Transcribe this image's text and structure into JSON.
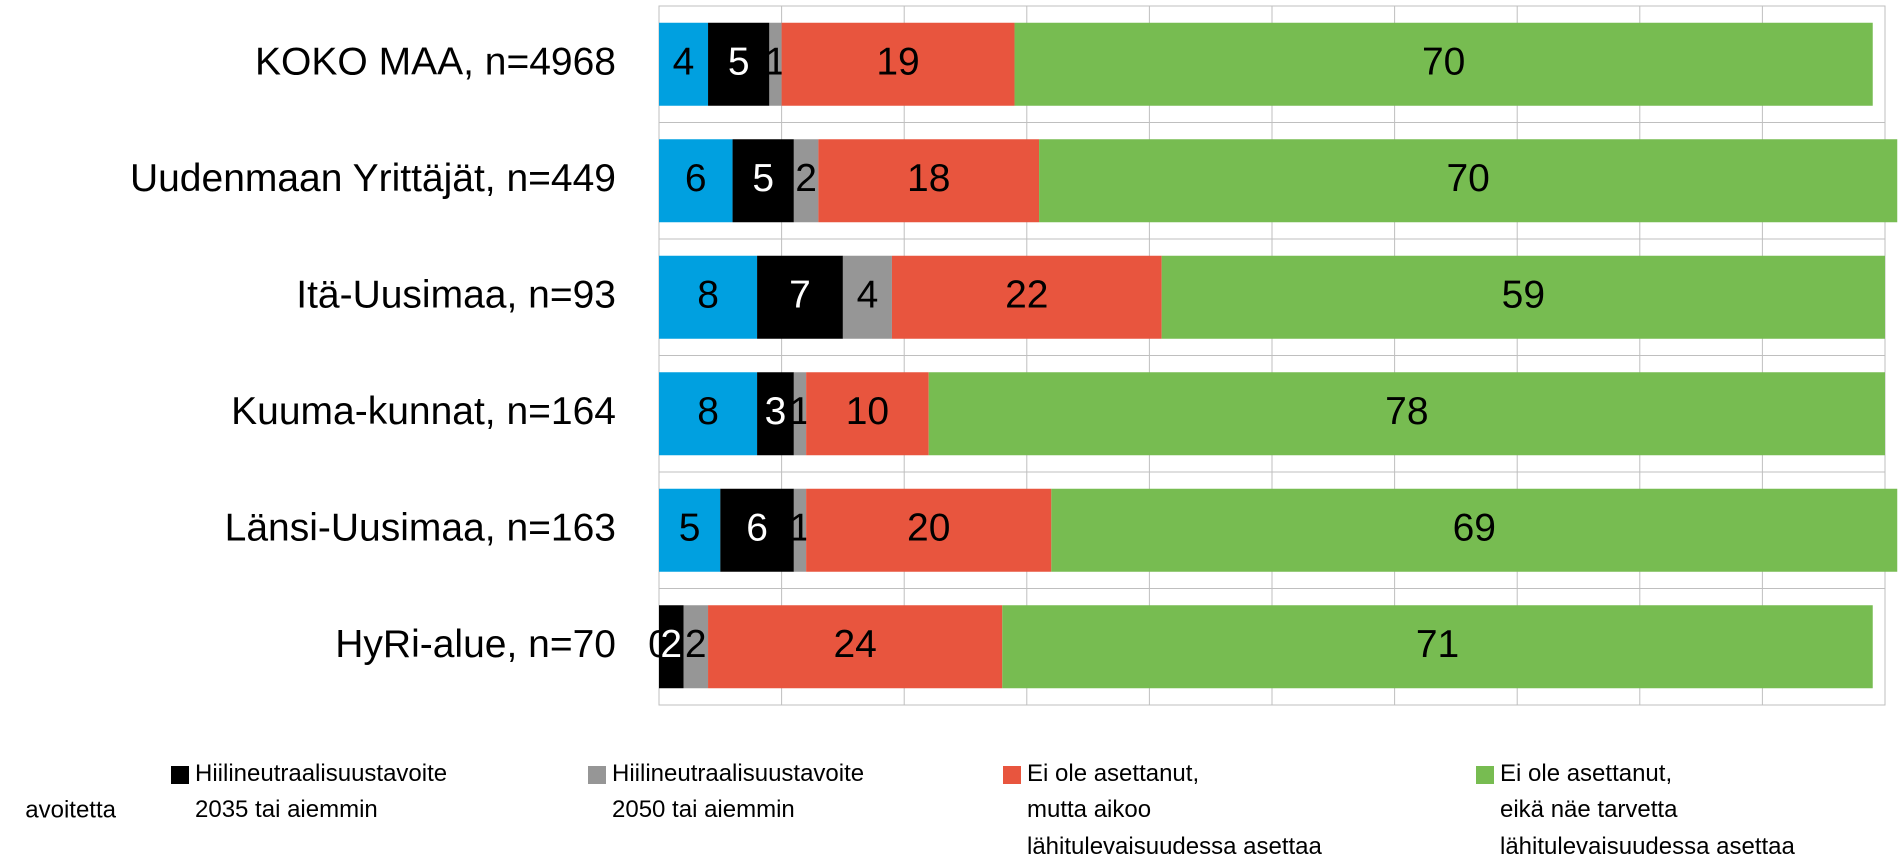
{
  "chart_data": {
    "type": "stacked-barh",
    "categories": [
      "KOKO MAA, n=4968",
      "Uudenmaan Yrittäjät, n=449",
      "Itä-Uusimaa, n=93",
      "Kuuma-kunnat, n=164",
      "Länsi-Uusimaa, n=163",
      "HyRi-alue, n=70"
    ],
    "series": [
      {
        "name": "avoitetta",
        "color": "#00a0e0",
        "values": [
          4,
          6,
          8,
          8,
          5,
          0
        ]
      },
      {
        "name": "Hiilineutraalisuustavoite\n2035 tai aiemmin",
        "color": "#000000",
        "values": [
          5,
          5,
          7,
          3,
          6,
          2
        ]
      },
      {
        "name": "Hiilineutraalisuustavoite\n2050 tai aiemmin",
        "color": "#969696",
        "values": [
          1,
          2,
          4,
          1,
          1,
          2
        ]
      },
      {
        "name": "Ei ole asettanut,\nmutta aikoo\nlähitulevaisuudessa asettaa",
        "color": "#e8553e",
        "values": [
          19,
          18,
          22,
          10,
          20,
          24
        ]
      },
      {
        "name": "Ei ole asettanut,\neikä näe tarvetta\nlähitulevaisuudessa asettaa",
        "color": "#77bc51",
        "values": [
          70,
          70,
          59,
          78,
          69,
          71
        ]
      }
    ],
    "xlim": [
      0,
      100
    ],
    "xticks": [
      0,
      10,
      20,
      30,
      40,
      50,
      60,
      70,
      80,
      90,
      100
    ],
    "grid": true
  }
}
